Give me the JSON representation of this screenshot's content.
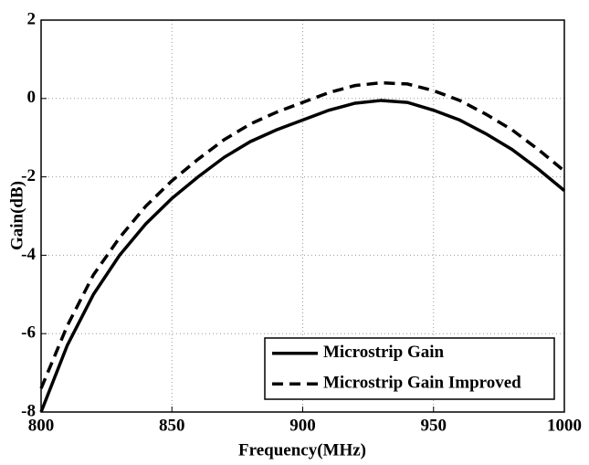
{
  "chart_data": {
    "type": "line",
    "xlabel": "Frequency(MHz)",
    "ylabel": "Gain(dB)",
    "x": [
      800,
      810,
      820,
      830,
      840,
      850,
      860,
      870,
      880,
      890,
      900,
      910,
      920,
      930,
      940,
      950,
      960,
      970,
      980,
      990,
      1000
    ],
    "series": [
      {
        "name": "Microstrip Gain",
        "color": "#000000",
        "dash": "solid",
        "values": [
          -8.0,
          -6.3,
          -5.0,
          -4.0,
          -3.2,
          -2.55,
          -2.0,
          -1.5,
          -1.1,
          -0.8,
          -0.55,
          -0.3,
          -0.12,
          -0.05,
          -0.1,
          -0.3,
          -0.55,
          -0.9,
          -1.3,
          -1.8,
          -2.35
        ]
      },
      {
        "name": "Microstrip Gain Improved",
        "color": "#000000",
        "dash": "dashed",
        "values": [
          -7.4,
          -5.8,
          -4.5,
          -3.55,
          -2.75,
          -2.1,
          -1.55,
          -1.05,
          -0.65,
          -0.35,
          -0.1,
          0.15,
          0.33,
          0.4,
          0.37,
          0.2,
          -0.05,
          -0.4,
          -0.8,
          -1.3,
          -1.85
        ]
      }
    ],
    "xlim": [
      800,
      1000
    ],
    "ylim": [
      -8,
      2
    ],
    "xticks": [
      800,
      850,
      900,
      950,
      1000
    ],
    "yticks": [
      -8,
      -6,
      -4,
      -2,
      0,
      2
    ],
    "grid": true,
    "legend": "lower-right"
  }
}
